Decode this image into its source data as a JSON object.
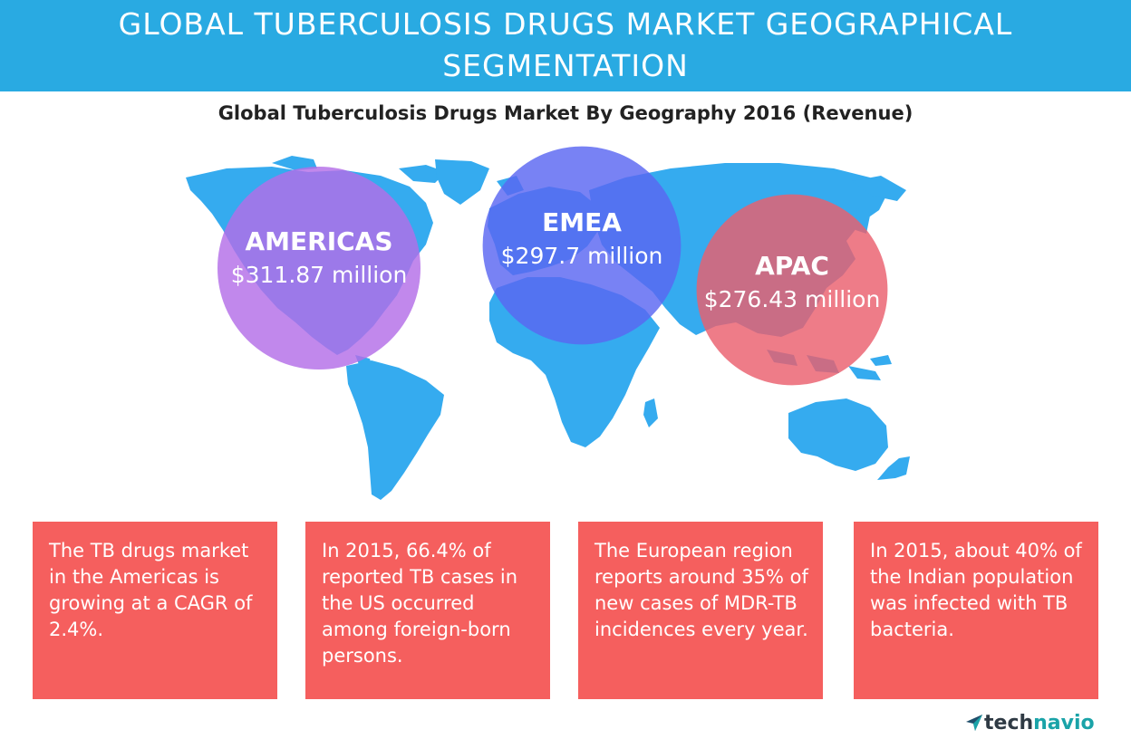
{
  "header": {
    "title_line1": "GLOBAL TUBERCULOSIS DRUGS MARKET GEOGRAPHICAL",
    "title_line2": "SEGMENTATION"
  },
  "chart_data": {
    "type": "bubble-map",
    "title": "Global Tuberculosis Drugs Market By Geography 2016 (Revenue)",
    "unit": "USD million",
    "regions": [
      {
        "name": "AMERICAS",
        "label": "$311.87 million",
        "value": 311.87,
        "color": "#b36ee8"
      },
      {
        "name": "EMEA",
        "label": "$297.7 million",
        "value": 297.7,
        "color": "#5a66f2"
      },
      {
        "name": "APAC",
        "label": "$276.43 million",
        "value": 276.43,
        "color": "#ea5f6e"
      }
    ]
  },
  "facts": [
    "The TB drugs market in the Americas is growing at a CAGR of 2.4%.",
    "In 2015, 66.4% of reported TB cases in the US occurred among foreign-born persons.",
    "The European region reports around 35% of new cases of MDR-TB incidences every year.",
    "In 2015, about 40% of the Indian population was infected with TB bacteria."
  ],
  "colors": {
    "banner": "#29aae2",
    "map": "#35abef",
    "fact_box": "#f55f5e"
  },
  "brand": {
    "logo_prefix": "tech",
    "logo_suffix": "navio",
    "logo_icon": "technavio-arrow-icon"
  }
}
